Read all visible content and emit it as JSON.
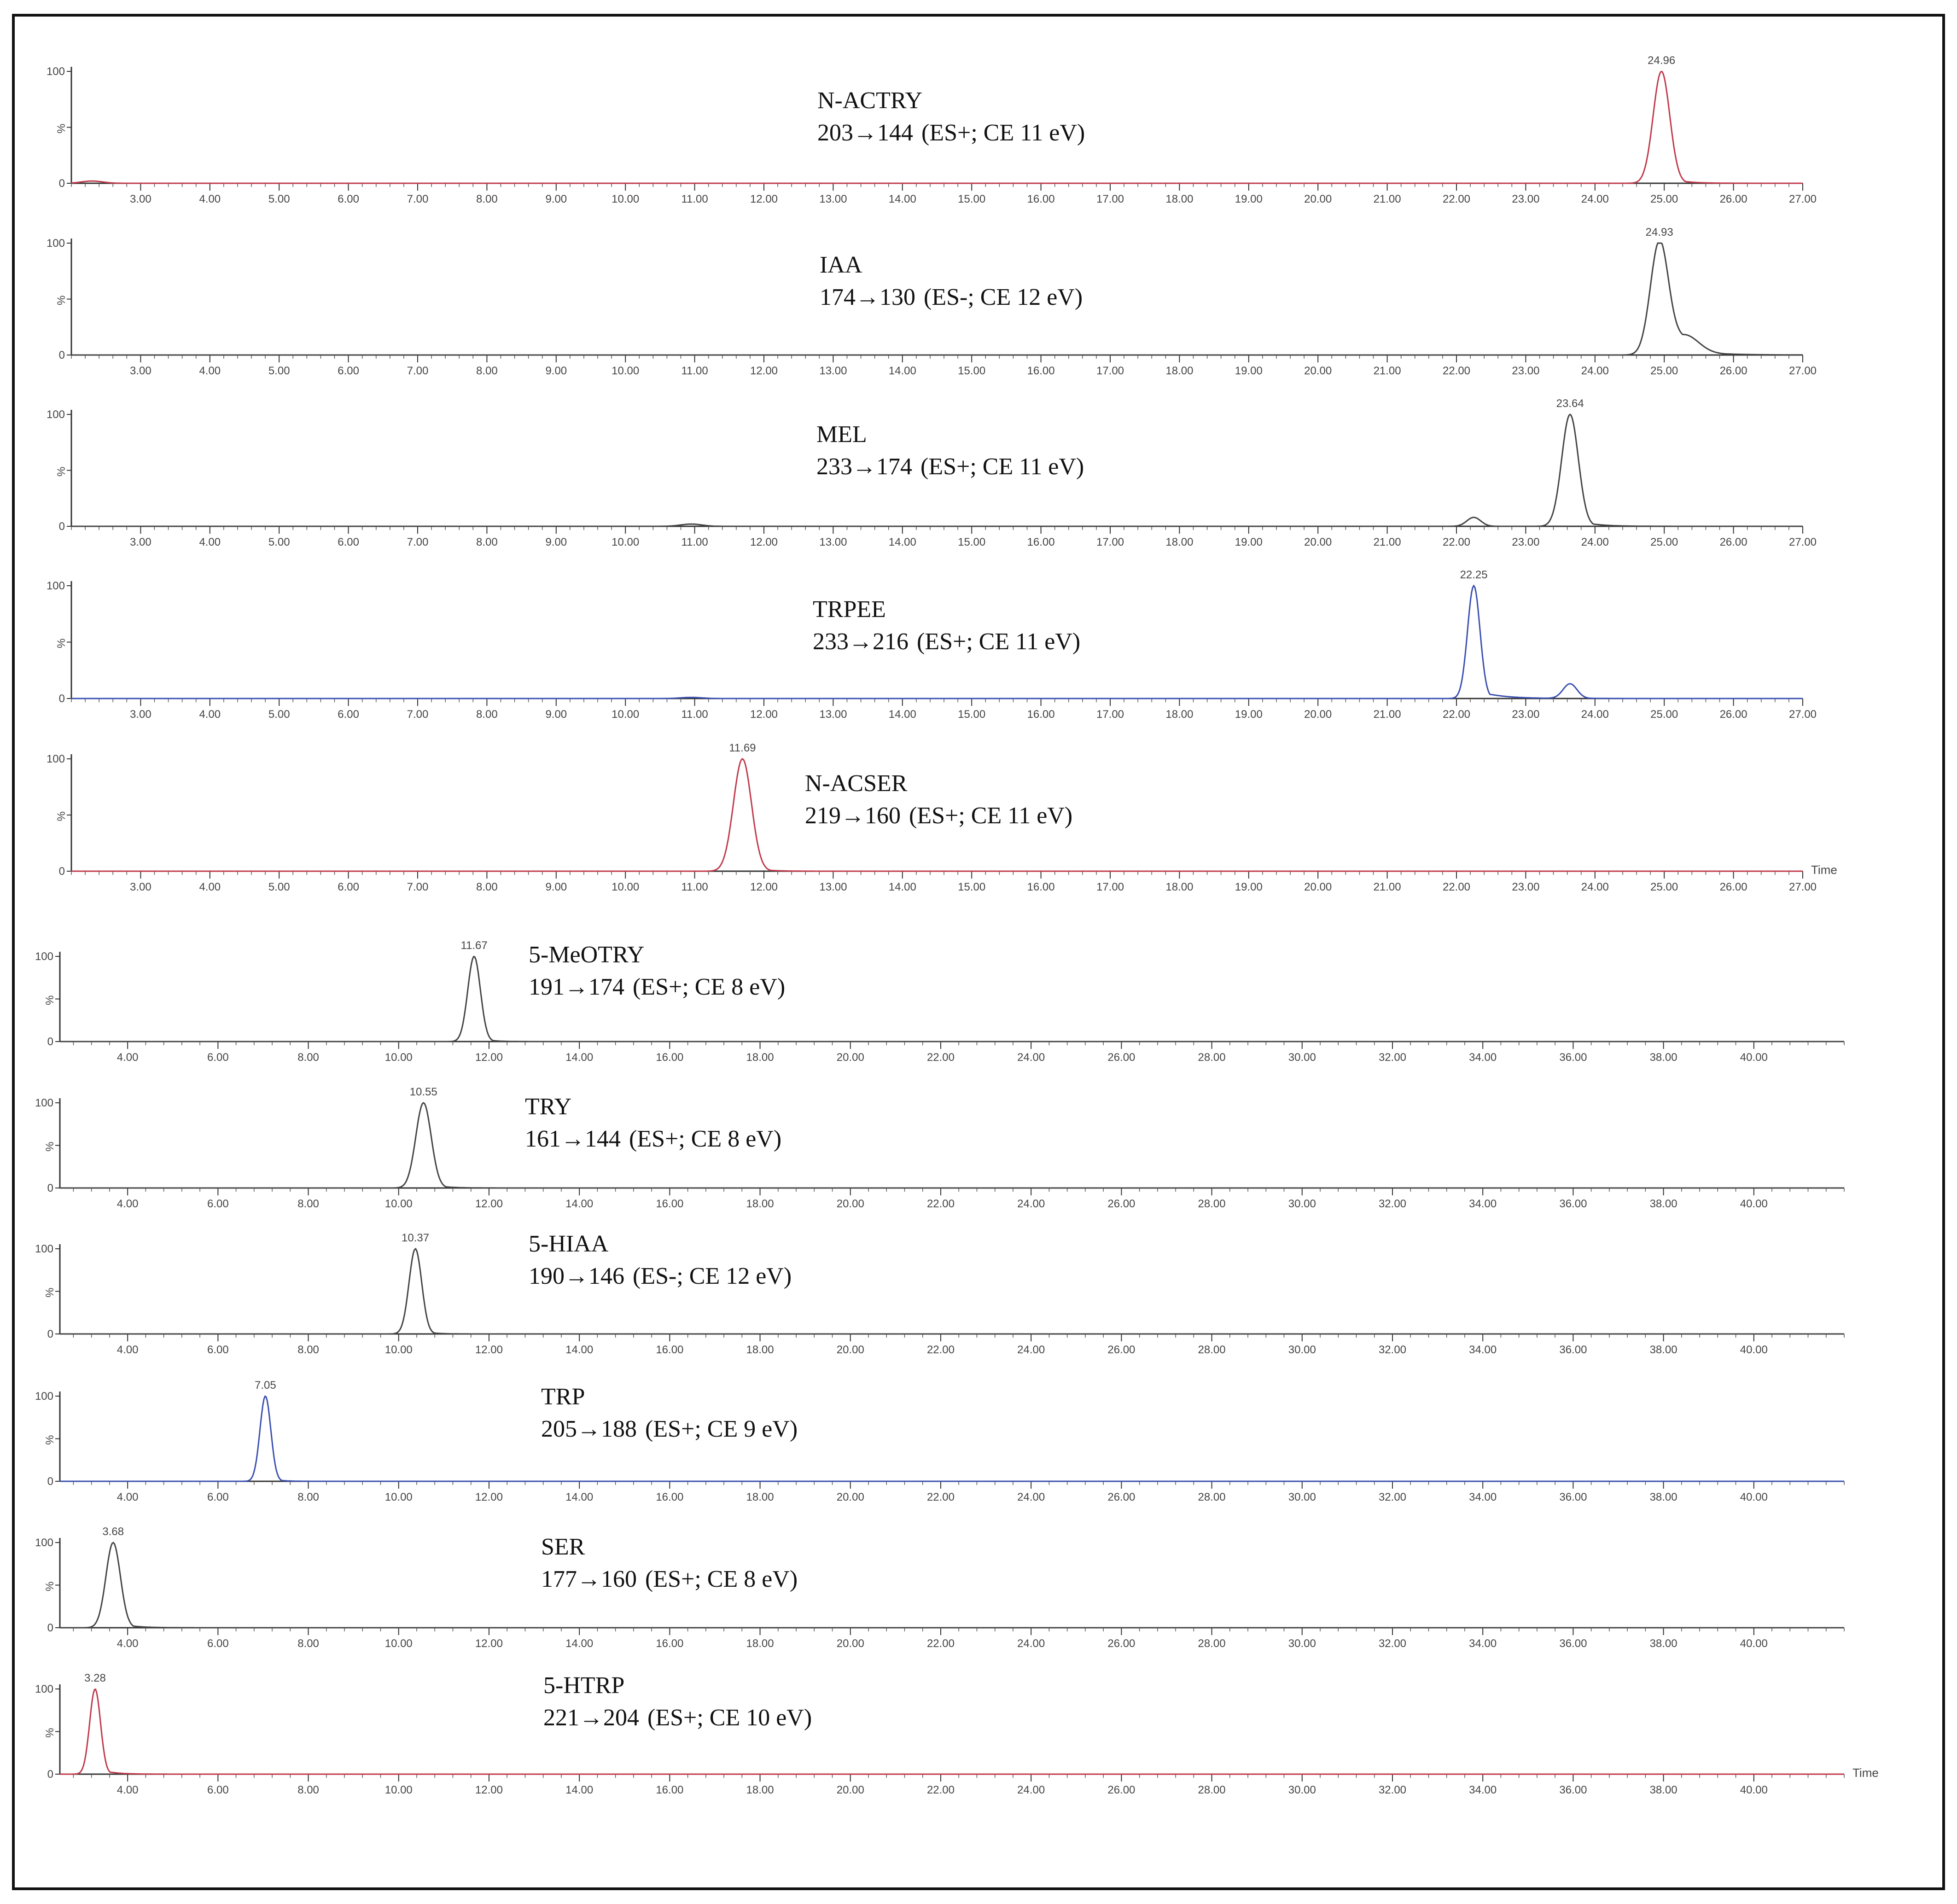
{
  "chart_data": [
    {
      "type": "line",
      "panel": "chromatogram",
      "compound": "N-ACTRY",
      "transition": "203→144",
      "conditions": "(ES+; CE 11 eV)",
      "color": "#c0394b",
      "peak_label": "24.96",
      "peaks": [
        {
          "rt": 24.96,
          "height": 100,
          "width": 0.12,
          "tail": 0.6
        },
        {
          "rt": 2.3,
          "height": 2,
          "width": 0.15,
          "tail": 0
        }
      ],
      "xlim": [
        2.0,
        27.0
      ],
      "xticks": [
        3,
        4,
        5,
        6,
        7,
        8,
        9,
        10,
        11,
        12,
        13,
        14,
        15,
        16,
        17,
        18,
        19,
        20,
        21,
        22,
        23,
        24,
        25,
        26,
        27
      ],
      "yticks": [
        "100",
        "%",
        "0"
      ],
      "ylim": [
        0,
        100
      ],
      "time_label": ""
    },
    {
      "type": "line",
      "panel": "chromatogram",
      "compound": "IAA",
      "transition": "174→130",
      "conditions": "(ES-; CE 12 eV)",
      "color": "#444444",
      "peak_label": "24.93",
      "peaks": [
        {
          "rt": 24.93,
          "height": 100,
          "width": 0.13,
          "tail": 1.2
        },
        {
          "rt": 25.3,
          "height": 15,
          "width": 0.2,
          "tail": 1.0
        }
      ],
      "xlim": [
        2.0,
        27.0
      ],
      "xticks": [
        3,
        4,
        5,
        6,
        7,
        8,
        9,
        10,
        11,
        12,
        13,
        14,
        15,
        16,
        17,
        18,
        19,
        20,
        21,
        22,
        23,
        24,
        25,
        26,
        27
      ],
      "yticks": [
        "100",
        "%",
        "0"
      ],
      "ylim": [
        0,
        100
      ],
      "time_label": ""
    },
    {
      "type": "line",
      "panel": "chromatogram",
      "compound": "MEL",
      "transition": "233→174",
      "conditions": "(ES+; CE 11 eV)",
      "color": "#444444",
      "peak_label": "23.64",
      "peaks": [
        {
          "rt": 23.64,
          "height": 100,
          "width": 0.12,
          "tail": 0.7
        },
        {
          "rt": 22.25,
          "height": 8,
          "width": 0.1,
          "tail": 0.3
        },
        {
          "rt": 10.95,
          "height": 2,
          "width": 0.15,
          "tail": 0
        }
      ],
      "xlim": [
        2.0,
        27.0
      ],
      "xticks": [
        3,
        4,
        5,
        6,
        7,
        8,
        9,
        10,
        11,
        12,
        13,
        14,
        15,
        16,
        17,
        18,
        19,
        20,
        21,
        22,
        23,
        24,
        25,
        26,
        27
      ],
      "yticks": [
        "100",
        "%",
        "0"
      ],
      "ylim": [
        0,
        100
      ],
      "time_label": ""
    },
    {
      "type": "line",
      "panel": "chromatogram",
      "compound": "TRPEE",
      "transition": "233→216",
      "conditions": "(ES+; CE 11 eV)",
      "color": "#3a4fb0",
      "peak_label": "22.25",
      "peaks": [
        {
          "rt": 22.25,
          "height": 100,
          "width": 0.09,
          "tail": 0.9
        },
        {
          "rt": 23.64,
          "height": 13,
          "width": 0.1,
          "tail": 0.5
        },
        {
          "rt": 10.95,
          "height": 1,
          "width": 0.15,
          "tail": 0
        }
      ],
      "xlim": [
        2.0,
        27.0
      ],
      "xticks": [
        3,
        4,
        5,
        6,
        7,
        8,
        9,
        10,
        11,
        12,
        13,
        14,
        15,
        16,
        17,
        18,
        19,
        20,
        21,
        22,
        23,
        24,
        25,
        26,
        27
      ],
      "yticks": [
        "100",
        "%",
        "0"
      ],
      "ylim": [
        0,
        100
      ],
      "time_label": ""
    },
    {
      "type": "line",
      "panel": "chromatogram",
      "compound": "N-ACSER",
      "transition": "219→160",
      "conditions": "(ES+; CE 11 eV)",
      "color": "#c0394b",
      "peak_label": "11.69",
      "peaks": [
        {
          "rt": 11.69,
          "height": 100,
          "width": 0.13,
          "tail": 0.5
        }
      ],
      "xlim": [
        2.0,
        27.0
      ],
      "xticks": [
        3,
        4,
        5,
        6,
        7,
        8,
        9,
        10,
        11,
        12,
        13,
        14,
        15,
        16,
        17,
        18,
        19,
        20,
        21,
        22,
        23,
        24,
        25,
        26,
        27
      ],
      "yticks": [
        "100",
        "%",
        "0"
      ],
      "ylim": [
        0,
        100
      ],
      "time_label": "Time"
    },
    {
      "type": "line",
      "panel": "chromatogram",
      "compound": "5-MeOTRY",
      "transition": "191→174",
      "conditions": "(ES+; CE 8 eV)",
      "color": "#444444",
      "peak_label": "11.67",
      "peaks": [
        {
          "rt": 11.67,
          "height": 100,
          "width": 0.14,
          "tail": 0.6
        }
      ],
      "xlim": [
        2.5,
        42.0
      ],
      "xticks": [
        4,
        6,
        8,
        10,
        12,
        14,
        16,
        18,
        20,
        22,
        24,
        26,
        28,
        30,
        32,
        34,
        36,
        38,
        40
      ],
      "yticks": [
        "100",
        "%",
        "0"
      ],
      "ylim": [
        0,
        100
      ],
      "time_label": ""
    },
    {
      "type": "line",
      "panel": "chromatogram",
      "compound": "TRY",
      "transition": "161→144",
      "conditions": "(ES+; CE 8 eV)",
      "color": "#444444",
      "peak_label": "10.55",
      "peaks": [
        {
          "rt": 10.55,
          "height": 100,
          "width": 0.17,
          "tail": 0.8
        }
      ],
      "xlim": [
        2.5,
        42.0
      ],
      "xticks": [
        4,
        6,
        8,
        10,
        12,
        14,
        16,
        18,
        20,
        22,
        24,
        26,
        28,
        30,
        32,
        34,
        36,
        38,
        40
      ],
      "yticks": [
        "100",
        "%",
        "0"
      ],
      "ylim": [
        0,
        100
      ],
      "time_label": ""
    },
    {
      "type": "line",
      "panel": "chromatogram",
      "compound": "5-HIAA",
      "transition": "190→146",
      "conditions": "(ES-; CE 12 eV)",
      "color": "#444444",
      "peak_label": "10.37",
      "peaks": [
        {
          "rt": 10.37,
          "height": 100,
          "width": 0.14,
          "tail": 0.6
        }
      ],
      "xlim": [
        2.5,
        42.0
      ],
      "xticks": [
        4,
        6,
        8,
        10,
        12,
        14,
        16,
        18,
        20,
        22,
        24,
        26,
        28,
        30,
        32,
        34,
        36,
        38,
        40
      ],
      "yticks": [
        "100",
        "%",
        "0"
      ],
      "ylim": [
        0,
        100
      ],
      "time_label": ""
    },
    {
      "type": "line",
      "panel": "chromatogram",
      "compound": "TRP",
      "transition": "205→188",
      "conditions": "(ES+; CE 9 eV)",
      "color": "#3a4fb0",
      "peak_label": "7.05",
      "peaks": [
        {
          "rt": 7.05,
          "height": 100,
          "width": 0.12,
          "tail": 0.5
        }
      ],
      "xlim": [
        2.5,
        42.0
      ],
      "xticks": [
        4,
        6,
        8,
        10,
        12,
        14,
        16,
        18,
        20,
        22,
        24,
        26,
        28,
        30,
        32,
        34,
        36,
        38,
        40
      ],
      "yticks": [
        "100",
        "%",
        "0"
      ],
      "ylim": [
        0,
        100
      ],
      "time_label": ""
    },
    {
      "type": "line",
      "panel": "chromatogram",
      "compound": "SER",
      "transition": "177→160",
      "conditions": "(ES+; CE 8 eV)",
      "color": "#444444",
      "peak_label": "3.68",
      "peaks": [
        {
          "rt": 3.68,
          "height": 100,
          "width": 0.16,
          "tail": 0.9
        }
      ],
      "xlim": [
        2.5,
        42.0
      ],
      "xticks": [
        4,
        6,
        8,
        10,
        12,
        14,
        16,
        18,
        20,
        22,
        24,
        26,
        28,
        30,
        32,
        34,
        36,
        38,
        40
      ],
      "yticks": [
        "100",
        "%",
        "0"
      ],
      "ylim": [
        0,
        100
      ],
      "time_label": ""
    },
    {
      "type": "line",
      "panel": "chromatogram",
      "compound": "5-HTRP",
      "transition": "221→204",
      "conditions": "(ES+; CE 10 eV)",
      "color": "#c0394b",
      "peak_label": "3.28",
      "peaks": [
        {
          "rt": 3.28,
          "height": 100,
          "width": 0.12,
          "tail": 0.8
        }
      ],
      "xlim": [
        2.5,
        42.0
      ],
      "xticks": [
        4,
        6,
        8,
        10,
        12,
        14,
        16,
        18,
        20,
        22,
        24,
        26,
        28,
        30,
        32,
        34,
        36,
        38,
        40
      ],
      "yticks": [
        "100",
        "%",
        "0"
      ],
      "ylim": [
        0,
        100
      ],
      "time_label": "Time"
    }
  ]
}
